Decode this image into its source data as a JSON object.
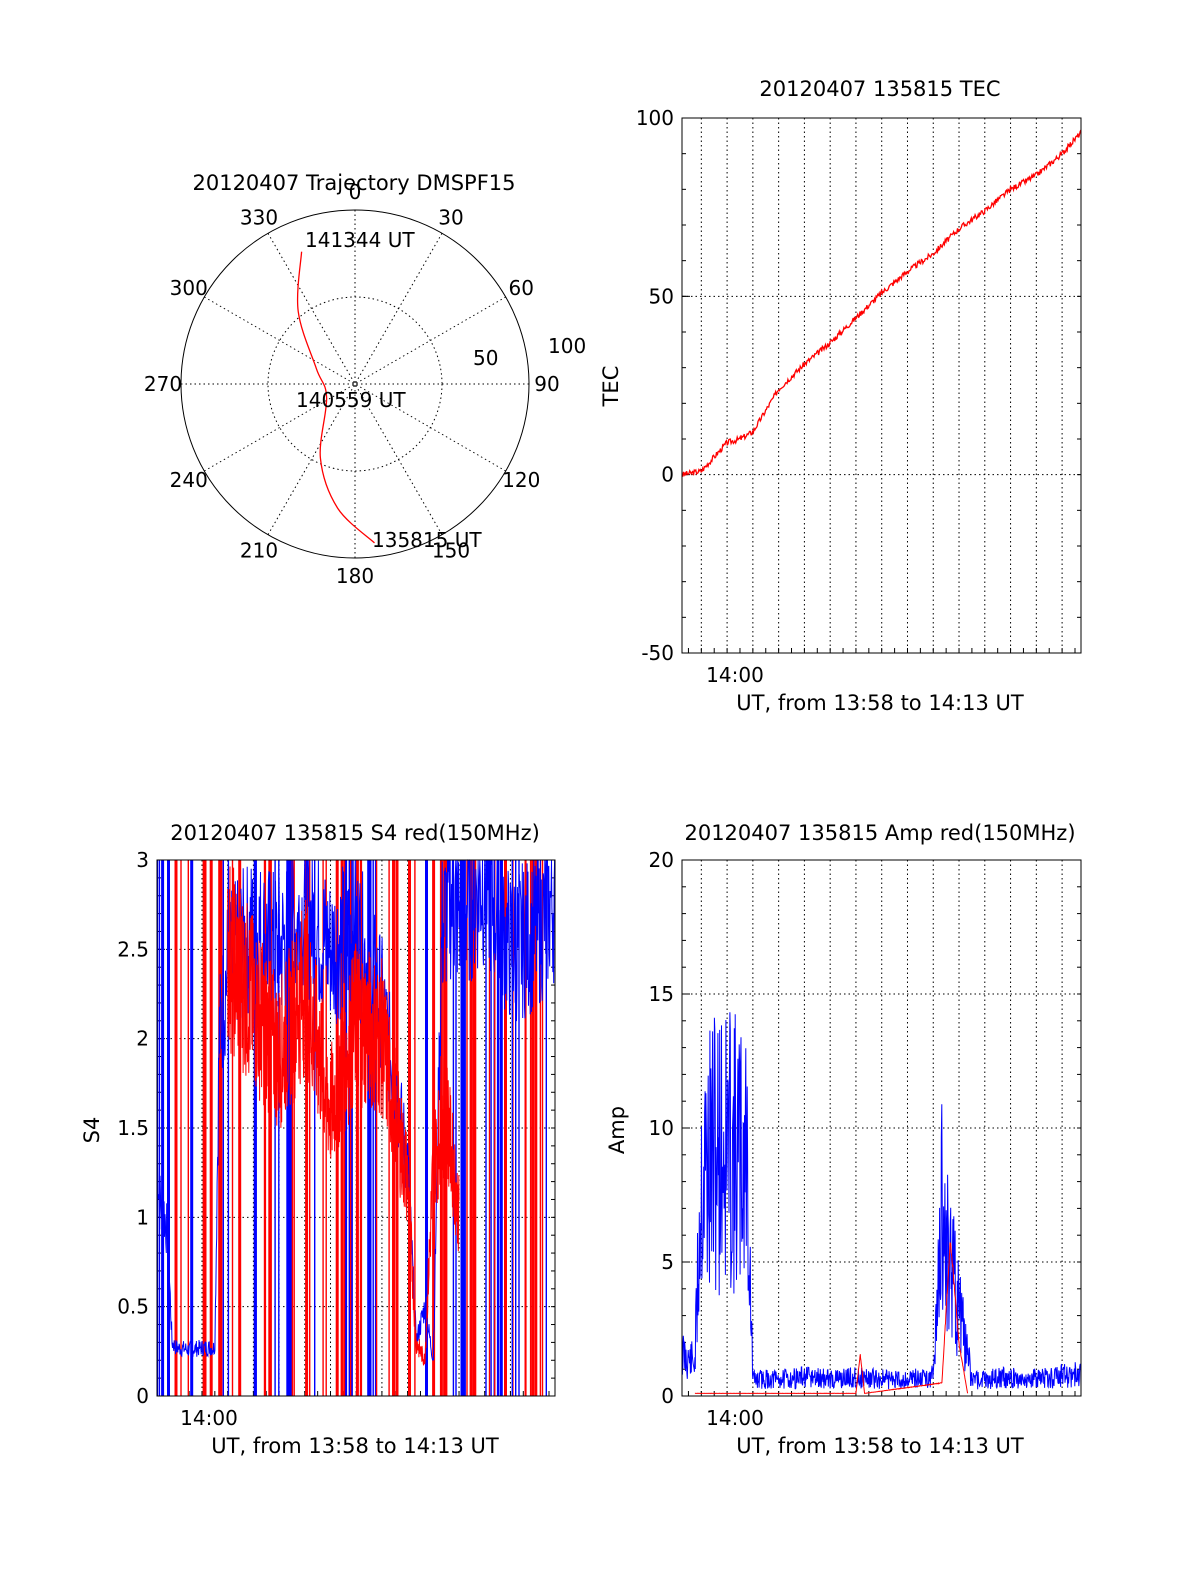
{
  "colors": {
    "red": "#ff0000",
    "blue": "#0000ff",
    "grid": "#000000"
  },
  "chart_data": [
    {
      "type": "polar",
      "title": "20120407 Trajectory DMSPF15",
      "angle_labels": [
        "0",
        "30",
        "60",
        "90",
        "120",
        "150",
        "180",
        "210",
        "240",
        "270",
        "300",
        "330"
      ],
      "radius_labels": [
        "50",
        "100"
      ],
      "rlim": [
        0,
        100
      ],
      "point_labels": [
        "141344 UT",
        "140559 UT",
        "135815 UT"
      ],
      "series": [
        {
          "color": "#ff0000",
          "points": [
            {
              "az": 338,
              "r": 82
            },
            {
              "az": 322,
              "r": 53
            },
            {
              "az": 292,
              "r": 24
            },
            {
              "az": 245,
              "r": 18
            },
            {
              "az": 205,
              "r": 47
            },
            {
              "az": 188,
              "r": 72
            },
            {
              "az": 173,
              "r": 92
            }
          ]
        }
      ]
    },
    {
      "type": "line",
      "title": "20120407 135815 TEC",
      "xlabel": "UT, from 13:58 to 14:13 UT",
      "ylabel": "TEC",
      "xlim": [
        "13:58:15",
        "14:13:44"
      ],
      "ylim": [
        -50,
        100
      ],
      "yticks": [
        "-50",
        "0",
        "50",
        "100"
      ],
      "xtick_label": "14:00",
      "grid": true,
      "series": [
        {
          "color": "#ff0000",
          "x": [
            "13:58:15",
            "13:59:00",
            "13:59:30",
            "14:00:00",
            "14:00:30",
            "14:01:00",
            "14:02:00",
            "14:03:00",
            "14:04:00",
            "14:05:00",
            "14:06:00",
            "14:07:00",
            "14:08:00",
            "14:09:00",
            "14:10:00",
            "14:11:00",
            "14:12:00",
            "14:13:00",
            "14:13:44"
          ],
          "y": [
            0,
            1,
            5,
            9,
            10,
            12,
            24,
            31,
            37,
            44,
            51,
            57,
            62,
            69,
            74,
            80,
            84,
            90,
            96
          ]
        }
      ]
    },
    {
      "type": "line",
      "title": "20120407 135815 S4 red(150MHz)",
      "xlabel": "UT, from 13:58 to 14:13 UT",
      "ylabel": "S4",
      "xlim": [
        "13:58:15",
        "14:13:44"
      ],
      "ylim": [
        0,
        3
      ],
      "yticks": [
        "0",
        "0.5",
        "1",
        "1.5",
        "2",
        "2.5",
        "3"
      ],
      "xtick_label": "14:00",
      "grid": true,
      "series": [
        {
          "color": "#0000ff",
          "x": [
            "13:58:15",
            "13:58:20",
            "13:58:30",
            "13:58:40",
            "13:58:50",
            "13:59:00",
            "13:59:30",
            "14:00:00",
            "14:00:30",
            "14:00:40",
            "14:01:00",
            "14:02:00",
            "14:03:00",
            "14:04:00",
            "14:05:00",
            "14:06:00",
            "14:07:00",
            "14:08:00",
            "14:08:20",
            "14:08:40",
            "14:09:00",
            "14:09:20",
            "14:09:40",
            "14:10:00",
            "14:11:00",
            "14:12:00",
            "14:13:00",
            "14:13:44"
          ],
          "y": [
            1.4,
            1.1,
            1.05,
            0.9,
            0.3,
            0.27,
            0.26,
            0.27,
            0.27,
            2.0,
            2.4,
            2.6,
            2.5,
            2.7,
            2.5,
            2.6,
            2.2,
            1.3,
            0.3,
            0.5,
            0.2,
            2.6,
            2.8,
            2.7,
            2.9,
            2.5,
            2.6,
            2.8
          ]
        },
        {
          "color": "#ff0000",
          "x": [
            "14:01:00",
            "14:02:00",
            "14:03:00",
            "14:04:00",
            "14:05:00",
            "14:06:00",
            "14:07:00",
            "14:08:00",
            "14:08:20",
            "14:08:40",
            "14:09:00",
            "14:09:30",
            "14:10:00"
          ],
          "y": [
            2.5,
            2.2,
            1.9,
            2.3,
            1.6,
            2.1,
            2.0,
            1.2,
            0.3,
            0.2,
            1.3,
            1.6,
            1.0
          ]
        }
      ]
    },
    {
      "type": "line",
      "title": "20120407 135815 Amp red(150MHz)",
      "xlabel": "UT, from 13:58 to 14:13 UT",
      "ylabel": "Amp",
      "xlim": [
        "13:58:15",
        "14:13:44"
      ],
      "ylim": [
        0,
        20
      ],
      "yticks": [
        "0",
        "5",
        "10",
        "15",
        "20"
      ],
      "xtick_label": "14:00",
      "grid": true,
      "series": [
        {
          "color": "#0000ff",
          "name": "",
          "x": [
            "13:58:15",
            "13:58:30",
            "13:58:45",
            "13:59:00",
            "13:59:30",
            "14:00:00",
            "14:00:30",
            "14:00:45",
            "14:01:00",
            "14:02:00",
            "14:03:00",
            "14:04:00",
            "14:05:00",
            "14:06:00",
            "14:07:00",
            "14:08:00",
            "14:08:20",
            "14:08:40",
            "14:09:00",
            "14:09:30",
            "14:10:00",
            "14:11:00",
            "14:12:00",
            "14:13:00",
            "14:13:44"
          ],
          "y": [
            2.5,
            2.2,
            2.0,
            13.0,
            14.5,
            15.0,
            14.0,
            15.0,
            1.0,
            1.0,
            1.1,
            1.0,
            1.1,
            1.0,
            1.0,
            1.2,
            11.0,
            8.0,
            5.0,
            1.0,
            1.0,
            1.1,
            1.0,
            1.2,
            1.3
          ]
        },
        {
          "color": "#ff0000",
          "x": [
            "13:58:45",
            "14:00:45",
            "14:05:00",
            "14:05:10",
            "14:05:20",
            "14:08:20",
            "14:08:40",
            "14:09:00",
            "14:09:20"
          ],
          "y": [
            0.1,
            0.1,
            0.1,
            1.6,
            0.1,
            0.5,
            6.0,
            2.0,
            0.1
          ]
        }
      ]
    }
  ]
}
